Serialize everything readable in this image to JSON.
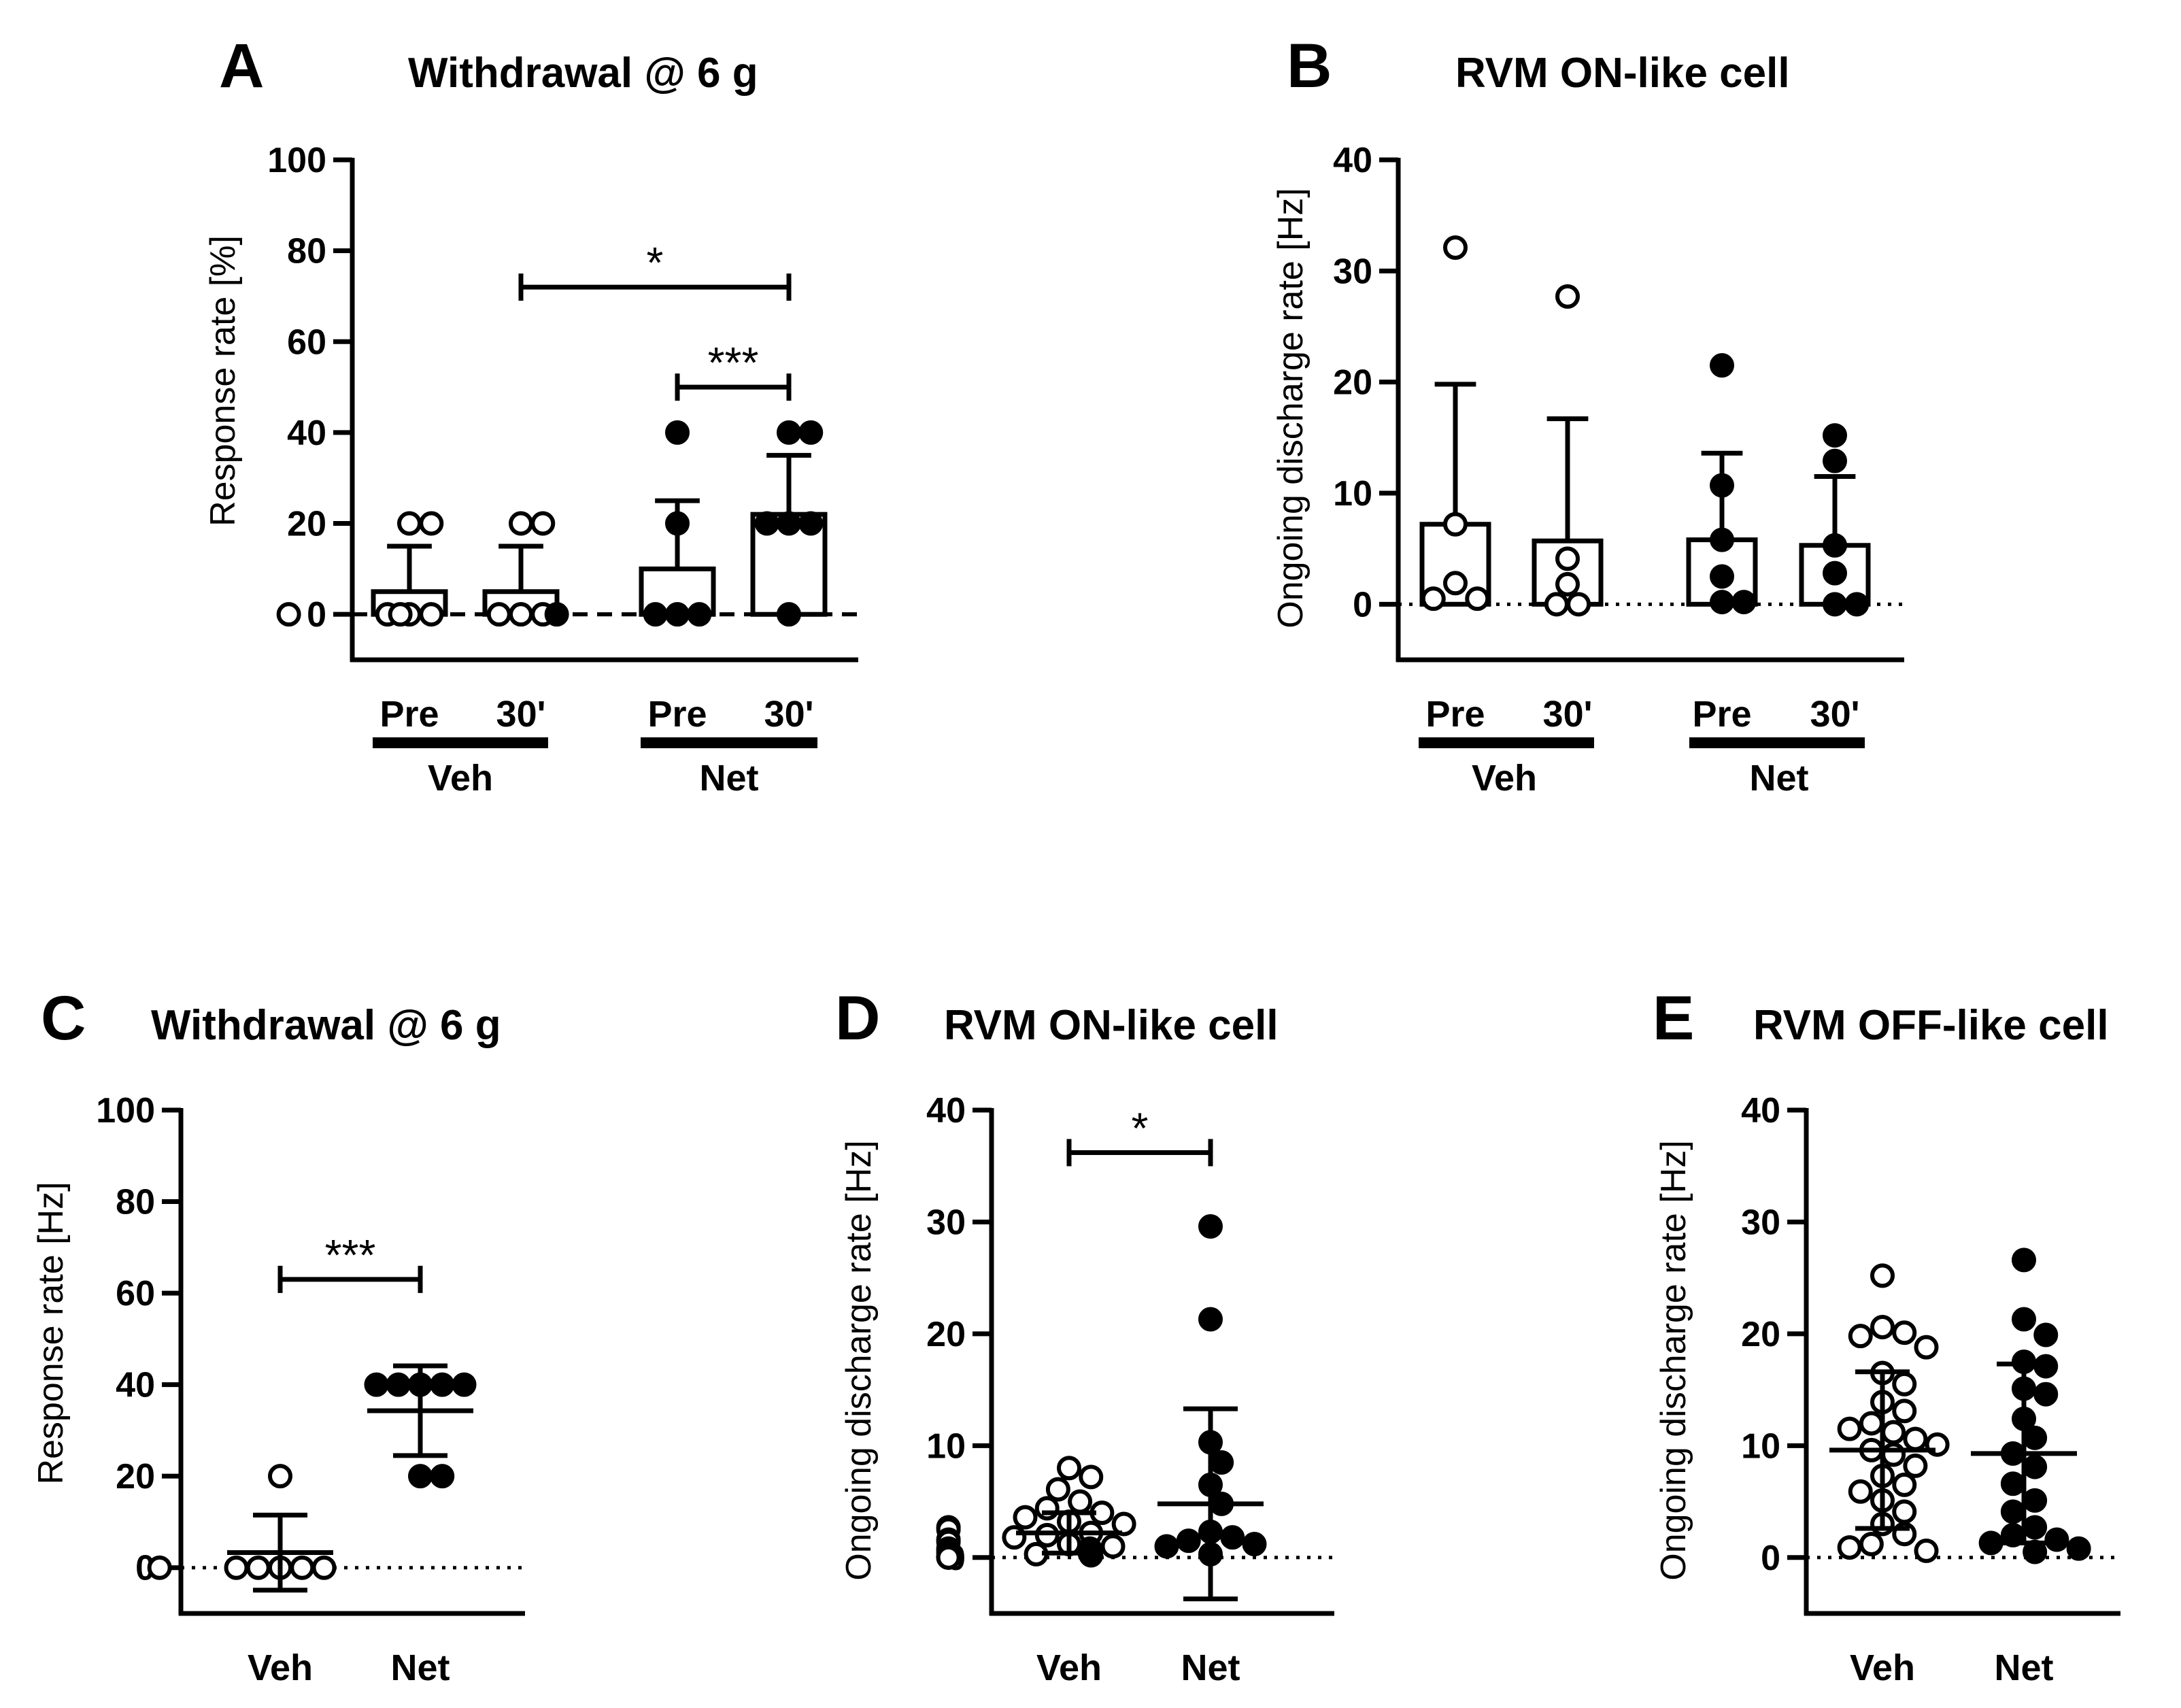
{
  "colors": {
    "ink": "#000000",
    "background": "#ffffff"
  },
  "chart_data": [
    {
      "panel": "A",
      "type": "bar",
      "title": "Withdrawal @ 6 g",
      "ylabel": "Response rate [%]",
      "ylim": [
        -10,
        100
      ],
      "yticks": [
        0,
        20,
        40,
        60,
        80,
        100
      ],
      "baseline": "dashed",
      "conditions": [
        {
          "label": "Pre",
          "group": "Veh",
          "fill": "open",
          "mean": 5,
          "sd": 10,
          "points": [
            0,
            0,
            0,
            0,
            20,
            20
          ]
        },
        {
          "label": "30'",
          "group": "Veh",
          "fill": "open",
          "mean": 5,
          "sd": 10,
          "points": [
            0,
            0,
            0,
            0,
            20,
            20
          ]
        },
        {
          "label": "Pre",
          "group": "Net",
          "fill": "solid",
          "mean": 10,
          "sd": 15,
          "points": [
            0,
            0,
            0,
            0,
            20,
            40
          ]
        },
        {
          "label": "30'",
          "group": "Net",
          "fill": "solid",
          "mean": 22,
          "sd": 13,
          "points": [
            0,
            20,
            20,
            20,
            40,
            40
          ]
        }
      ],
      "groups": [
        "Veh",
        "Net"
      ],
      "significance": [
        {
          "from": 1,
          "to": 3,
          "y": 72,
          "label": "*"
        },
        {
          "from": 2,
          "to": 3,
          "y": 50,
          "label": "***"
        }
      ]
    },
    {
      "panel": "B",
      "type": "bar",
      "title": "RVM ON-like cell",
      "ylabel": "Ongoing discharge rate [Hz]",
      "ylim": [
        -5,
        40
      ],
      "yticks": [
        0,
        10,
        20,
        30,
        40
      ],
      "baseline": "dotted",
      "conditions": [
        {
          "label": "Pre",
          "group": "Veh",
          "fill": "open",
          "mean": 7.2,
          "sd": 12.6,
          "points": [
            32.1,
            7.2,
            1.9,
            0.5,
            0.5
          ]
        },
        {
          "label": "30'",
          "group": "Veh",
          "fill": "open",
          "mean": 5.7,
          "sd": 11,
          "points": [
            27.7,
            4.1,
            1.8,
            0,
            0
          ]
        },
        {
          "label": "Pre",
          "group": "Net",
          "fill": "solid",
          "mean": 5.8,
          "sd": 7.8,
          "points": [
            21.5,
            10.7,
            5.8,
            2.5,
            0.2,
            0.2
          ]
        },
        {
          "label": "30'",
          "group": "Net",
          "fill": "solid",
          "mean": 5.3,
          "sd": 6.2,
          "points": [
            15.2,
            12.9,
            5.3,
            2.8,
            0,
            0
          ]
        }
      ],
      "groups": [
        "Veh",
        "Net"
      ],
      "significance": []
    },
    {
      "panel": "C",
      "type": "scatter",
      "title": "Withdrawal @ 6 g",
      "ylabel": "Response rate [Hz]",
      "ylim": [
        -10,
        100
      ],
      "yticks": [
        0,
        20,
        40,
        60,
        80,
        100
      ],
      "baseline": "dotted",
      "conditions": [
        {
          "label": "Veh",
          "fill": "open",
          "mean": 3.3,
          "sd": 8.2,
          "points": [
            0,
            0,
            0,
            0,
            0,
            0,
            20
          ]
        },
        {
          "label": "Net",
          "fill": "solid",
          "mean": 34.3,
          "sd": 9.8,
          "points": [
            40,
            40,
            40,
            40,
            40,
            20,
            20
          ]
        }
      ],
      "significance": [
        {
          "from": 0,
          "to": 1,
          "y": 63,
          "label": "***"
        }
      ]
    },
    {
      "panel": "D",
      "type": "scatter",
      "title": "RVM ON-like cell",
      "ylabel": "Ongoing discharge rate [Hz]",
      "ylim": [
        -5,
        40
      ],
      "yticks": [
        0,
        10,
        20,
        30,
        40
      ],
      "baseline": "dotted",
      "conditions": [
        {
          "label": "Veh",
          "fill": "open",
          "mean": 2.2,
          "sd": 1.8,
          "points": [
            8,
            7.2,
            6.1,
            5,
            4.4,
            4,
            3.6,
            3.2,
            3,
            2.7,
            2.5,
            2.2,
            2,
            1.8,
            1.6,
            1.4,
            1.2,
            1,
            0.8,
            0.6,
            0.4,
            0.2,
            0,
            0,
            0,
            0.3,
            0.1
          ]
        },
        {
          "label": "Net",
          "fill": "solid",
          "mean": 4.8,
          "sd": 8.5,
          "points": [
            29.6,
            21.3,
            10.3,
            8.5,
            6.5,
            4.8,
            2.3,
            1.8,
            1.5,
            1.2,
            1,
            0.8,
            0.5,
            0.4,
            0.4,
            0.3
          ]
        }
      ],
      "significance": [
        {
          "from": 0,
          "to": 1,
          "y": 36.2,
          "label": "*"
        }
      ]
    },
    {
      "panel": "E",
      "type": "scatter",
      "title": "RVM OFF-like cell",
      "ylabel": "Ongoing discharge rate [Hz]",
      "ylim": [
        -5,
        40
      ],
      "yticks": [
        0,
        10,
        20,
        30,
        40
      ],
      "baseline": "dotted",
      "conditions": [
        {
          "label": "Veh",
          "fill": "open",
          "mean": 9.6,
          "sd": 7,
          "points": [
            25.2,
            20.6,
            20.1,
            19.8,
            18.8,
            16.5,
            15.5,
            13.9,
            13.1,
            12,
            11.5,
            11.2,
            10.6,
            10.1,
            9.6,
            9.2,
            8.2,
            7.3,
            6.5,
            5.9,
            5.1,
            4.1,
            3,
            2.1,
            1.2,
            0.9,
            0.6
          ]
        },
        {
          "label": "Net",
          "fill": "solid",
          "mean": 9.3,
          "sd": 8,
          "points": [
            26.6,
            21.3,
            19.9,
            17.5,
            17.1,
            15.1,
            14.6,
            12.4,
            10.7,
            9.3,
            8.1,
            6.6,
            5.1,
            4.1,
            2.7,
            2,
            1.6,
            1.3,
            0.8,
            0.5
          ]
        }
      ],
      "significance": []
    }
  ]
}
